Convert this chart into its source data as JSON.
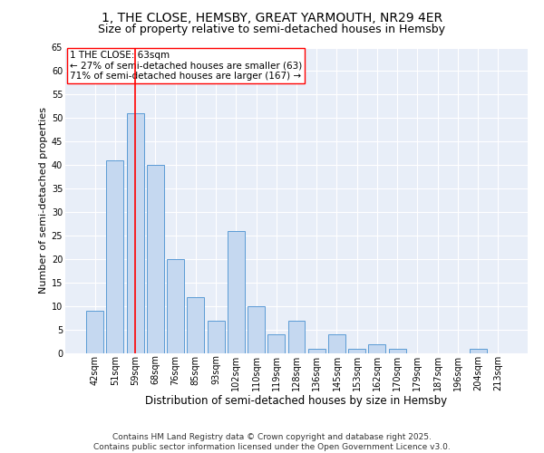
{
  "title1": "1, THE CLOSE, HEMSBY, GREAT YARMOUTH, NR29 4ER",
  "title2": "Size of property relative to semi-detached houses in Hemsby",
  "xlabel": "Distribution of semi-detached houses by size in Hemsby",
  "ylabel": "Number of semi-detached properties",
  "categories": [
    "42sqm",
    "51sqm",
    "59sqm",
    "68sqm",
    "76sqm",
    "85sqm",
    "93sqm",
    "102sqm",
    "110sqm",
    "119sqm",
    "128sqm",
    "136sqm",
    "145sqm",
    "153sqm",
    "162sqm",
    "170sqm",
    "179sqm",
    "187sqm",
    "196sqm",
    "204sqm",
    "213sqm"
  ],
  "values": [
    9,
    41,
    51,
    40,
    20,
    12,
    7,
    26,
    10,
    4,
    7,
    1,
    4,
    1,
    2,
    1,
    0,
    0,
    0,
    1,
    0
  ],
  "bar_color": "#c5d8f0",
  "bar_edge_color": "#5b9bd5",
  "vline_x": 2,
  "vline_color": "red",
  "annotation_line1": "1 THE CLOSE: 63sqm",
  "annotation_line2": "← 27% of semi-detached houses are smaller (63)",
  "annotation_line3": "71% of semi-detached houses are larger (167) →",
  "ylim": [
    0,
    65
  ],
  "yticks": [
    0,
    5,
    10,
    15,
    20,
    25,
    30,
    35,
    40,
    45,
    50,
    55,
    60,
    65
  ],
  "background_color": "#e8eef8",
  "footer": "Contains HM Land Registry data © Crown copyright and database right 2025.\nContains public sector information licensed under the Open Government Licence v3.0.",
  "title1_fontsize": 10,
  "title2_fontsize": 9,
  "xlabel_fontsize": 8.5,
  "ylabel_fontsize": 8,
  "tick_fontsize": 7,
  "annotation_fontsize": 7.5,
  "footer_fontsize": 6.5
}
